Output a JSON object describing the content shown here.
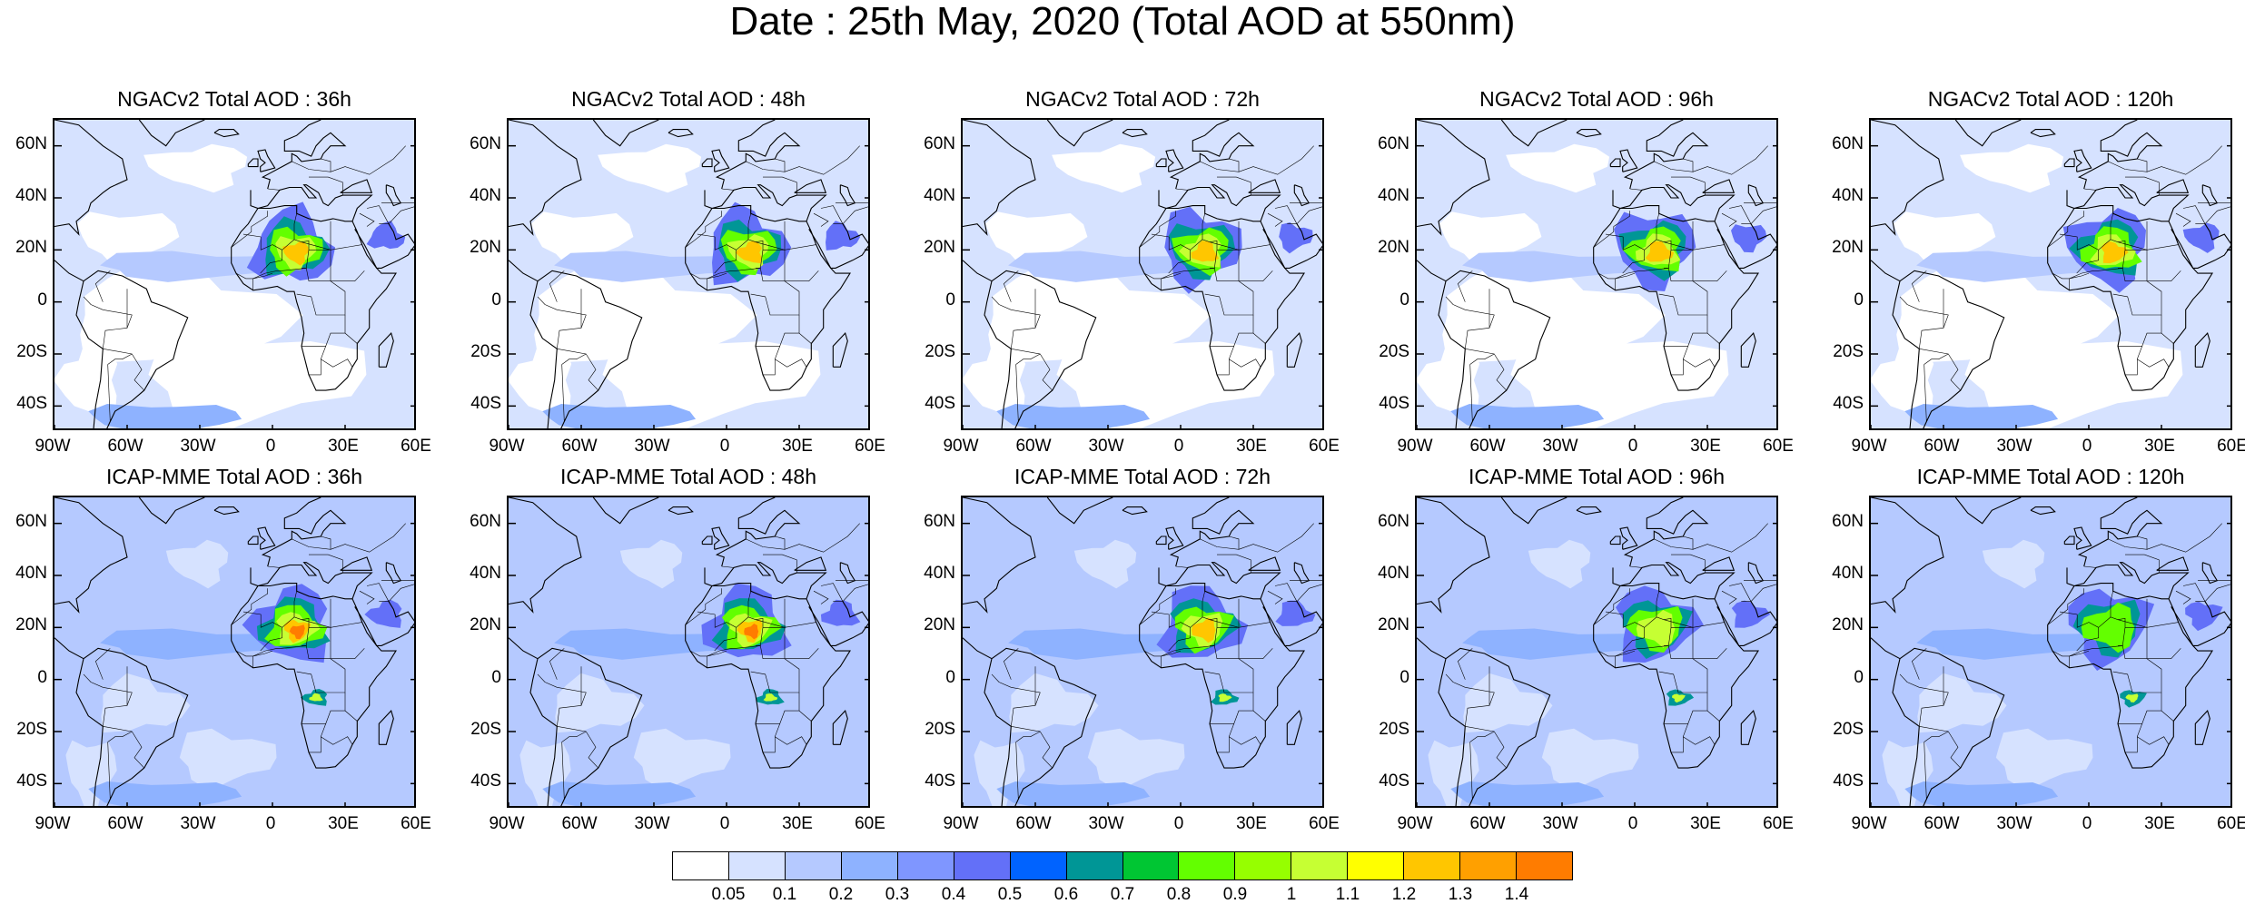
{
  "title": "Date : 25th May, 2020 (Total AOD at 550nm)",
  "map_axes": {
    "lon_labels": [
      "90W",
      "60W",
      "30W",
      "0",
      "30E",
      "60E"
    ],
    "lat_labels": [
      "60N",
      "40N",
      "20N",
      "0",
      "20S",
      "40S"
    ]
  },
  "panels": [
    {
      "title": "NGACv2 Total AOD : 36h",
      "model": "NGACv2",
      "lead": "36h",
      "plume_level": 1.2
    },
    {
      "title": "NGACv2 Total AOD : 48h",
      "model": "NGACv2",
      "lead": "48h",
      "plume_level": 1.2
    },
    {
      "title": "NGACv2 Total AOD : 72h",
      "model": "NGACv2",
      "lead": "72h",
      "plume_level": 1.2
    },
    {
      "title": "NGACv2 Total AOD : 96h",
      "model": "NGACv2",
      "lead": "96h",
      "plume_level": 1.2
    },
    {
      "title": "NGACv2 Total AOD : 120h",
      "model": "NGACv2",
      "lead": "120h",
      "plume_level": 1.2
    },
    {
      "title": "ICAP-MME Total AOD : 36h",
      "model": "ICAP-MME",
      "lead": "36h",
      "plume_level": 1.4
    },
    {
      "title": "ICAP-MME Total AOD : 48h",
      "model": "ICAP-MME",
      "lead": "48h",
      "plume_level": 1.4
    },
    {
      "title": "ICAP-MME Total AOD : 72h",
      "model": "ICAP-MME",
      "lead": "72h",
      "plume_level": 1.3
    },
    {
      "title": "ICAP-MME Total AOD : 96h",
      "model": "ICAP-MME",
      "lead": "96h",
      "plume_level": 1.1
    },
    {
      "title": "ICAP-MME Total AOD : 120h",
      "model": "ICAP-MME",
      "lead": "120h",
      "plume_level": 0.9
    }
  ],
  "colorbar": {
    "labels": [
      "0.05",
      "0.1",
      "0.2",
      "0.3",
      "0.4",
      "0.5",
      "0.6",
      "0.7",
      "0.8",
      "0.9",
      "1",
      "1.1",
      "1.2",
      "1.3",
      "1.4"
    ],
    "colors": [
      "#ffffff",
      "#d6e2ff",
      "#b5c9ff",
      "#8eb2ff",
      "#7f96ff",
      "#6370f8",
      "#0063ff",
      "#009696",
      "#00c633",
      "#63ff00",
      "#96ff00",
      "#c6ff33",
      "#ffff00",
      "#ffc600",
      "#ffa000",
      "#ff7c00",
      "#ff1900"
    ]
  }
}
